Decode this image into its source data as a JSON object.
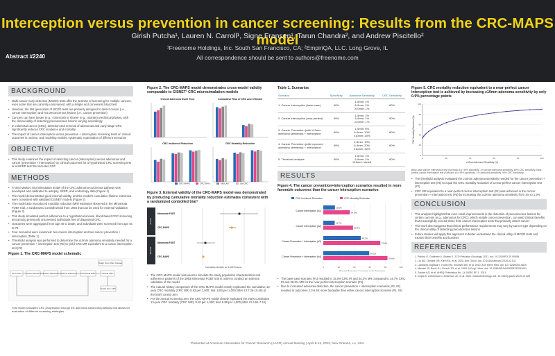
{
  "header": {
    "title": "Interception versus prevention in cancer screening: Results from the CRC-MAPS model",
    "authors": "Girish Putcha¹, Lauren N. Carroll¹, Signe Fransen¹, Tarun Chandra², and Andrew Piscitello²",
    "affiliations": "¹Freenome Holdings, Inc. South San Francisco, CA; ²EmpiriQA, LLC. Long Grove, IL",
    "correspondence": "All correspondence should be sent to authors@freenome.com",
    "abstract": "Abstract #2240"
  },
  "background": {
    "heading": "BACKGROUND",
    "bullets": [
      "Multi-cancer early detection (MCED) tests offer the promise of screening for multiple cancers, even some that are currently unscreened, with a simple and convenient blood test",
      "However, the first generation of MCED tests are primarily designed to detect cancer (i.e., cancer interception) and not precancerous lesions (i.e., cancer prevention)",
      "Cancers can have longer (e.g., colorectal) or shorter (e.g., ovarian) preclinical phases, with the clinical utility of detecting precancerous lesions varying accordingly",
      "In colorectal cancer (CRC), detection and removal of adenomas and early-stage CRC significantly reduces CRC incidence and mortality",
      "The impact of cancer interception versus prevention + interception screening tests on clinical outcomes is unclear, and modeling enables systematic examination of different scenarios"
    ]
  },
  "objective": {
    "heading": "OBJECTIVE",
    "bullets": [
      "This study examines the impact of detecting cancer (interception) versus adenomas and cancer (prevention + interception) on clinical outcomes for a hypothetical CRC screening test or a MCED test that includes CRC"
    ]
  },
  "methods": {
    "heading": "METHODS",
    "bullets": [
      "A semi Markov microsimulation model of the CRC adenoma-carcinoma pathway was developed and calibrated to autopsy, SEER, and endoscopy data (Figure 1)",
      "The model demonstrated good internal validity, and the model's cumulative lifetime outcomes were consistent with validated CISNET models (Figure 2)",
      "The model also reproduced mortality reduction (MR) estimates observed in the Minnesota FOBT trial, a randomized controlled trial from 1993 that can be used for external validation (Figure 3)",
      "This study simulated perfect adherence to a hypothetical annual, blood-based CRC screening test among previously unscreened individuals free of diagnosed CRC",
      "Outcomes were aggregated from age 40 to death, and individuals were screened from age 45 to 75",
      "Four scenarios were examined: two cancer interception and two cancer prevention + interception (Table 1)",
      "Threshold analysis was performed to determine the ≥10mm adenoma sensitivity needed for a cancer prevention + interception test (#5) to yield CRC MR equivalent to a cancer interception test (#2)"
    ]
  },
  "figure1": {
    "title": "Figure 1. The CRC-MAPS model schematic",
    "nodes": [
      "No Lesion",
      "1-5mm Adenoma",
      "6-9mm Adenoma",
      "≥10mm Adenoma",
      "Preclinical CRC",
      "Clinical CRC",
      "Death from CRC",
      "Death from Other Causes"
    ],
    "caption": "This model simulates CRC progression through the adenoma-carcinoma pathway and allows for evaluation of different screening strategies"
  },
  "figure2": {
    "title": "Figure 2. The CRC-MAPS model demonstrates cross-model validity comparable to CISNET³ CRC microsimulation models",
    "panels": [
      "Overall Adenoma Dwell Time",
      "Cumulative Risk of CRC and of Death",
      "CRC Incidence Reduction",
      "CRC Mortality Reduction"
    ],
    "models": [
      "CRC-MAPS",
      "CRC-SPIN",
      "MISCAN",
      "SimCRC"
    ]
  },
  "figure3": {
    "title": "Figure 3. External validity of the CRC-MAPS model was demonstrated by producing cumulative mortality reduction estimates consistent with a randomized controlled trial⁴",
    "rows": [
      "Minnesota FOBT",
      "CRC-MAPS",
      "Minnesota FOBT",
      "CRC-MAPS"
    ],
    "groups": [
      "Annual",
      "Biennial"
    ],
    "xlabel": "Cumulative Mortality per 1,000 Persons"
  },
  "col2_bullets": [
    "The CRC-MAPS model was used to simulate the study population characteristics and adherence patterns of the 1993 Minnesota FOBT trial in order to conduct an external validation of the model",
    "The natural history component of the CRC-MAPS model closely replicated the cumulative 13-year CRC mortality (CRC MR) 8.93 per 1,000; trial: 8.83 per 1,000 (95% CI 7.26-10.40) at the trial's control arm",
    "For the annual screening arm, the CRC-MAPS model closely replicated the trial's cumulative 13-year CRC mortality (CRC MR): 6.10 per 1,000; trial: 5.88 per 1,000 (95% CI 4.61-7.15)"
  ],
  "table1": {
    "title": "Table 1. Scenarios",
    "headers": [
      "Scenario",
      "Specificity",
      "Adenoma Sensitivity",
      "CRC Sensitivity"
    ],
    "rows": [
      {
        "scenario": "1. Cancer interception (base-case)",
        "spec": "99%",
        "aden": "1-5mm: 1%\n6-9mm: 1%\n≥10mm: 1%",
        "crc": "60%"
      },
      {
        "scenario": "2. Cancer interception (near-perfect)",
        "spec": "99%",
        "aden": "1-5mm: 1%\n6-9mm: 1%\n≥10mm: 1%",
        "crc": "90%"
      },
      {
        "scenario": "3. Cancer Prevention (with ≥10mm adenoma sensitivity) + interception",
        "spec": "99%",
        "aden": "1-5mm: 5%\n6-9mm: 10%\n≥10mm: 20%",
        "crc": "60%"
      },
      {
        "scenario": "4. Cancer Prevention (with improved adenoma sensitivity) + interception",
        "spec": "99%",
        "aden": "1-5mm: 10%\n6-9mm: 20%\n≥10mm: 30%",
        "crc": "60%"
      },
      {
        "scenario": "5. Threshold analysis",
        "spec": "99%",
        "aden": "1-5mm: 1%\n6-9mm: 1%\n≥10mm: Varied",
        "crc": "60%"
      }
    ]
  },
  "results": {
    "heading": "RESULTS",
    "figure4_title": "Figure 4. The cancer prevention+interception scenarios resulted in more favorable outcomes than the cancer interception scenarios",
    "legend": [
      "CRC Incidence Reduction",
      "CRC Mortality Reduction"
    ],
    "xlabel": "Percent Reduction Compared to No Screening",
    "bullets": [
      "The base-case scenario (#1) resulted in 15.0% CRC IR and 34.2% MR compared to 14.7% CRC IR and 38.3% MR for the near-perfect interception scenario (#2)",
      "Due to increased adenoma detection, the cancer prevention + interception scenarios (#3, #4) resulted in outcomes 2.3-5.6X more favorable than either cancer interception scenario (#1, #2)"
    ]
  },
  "chart_data": [
    {
      "type": "bar",
      "categories": [
        "Cancer Interception (#1)",
        "Cancer Interception (#2)",
        "Cancer Prevention + Interception (#3)",
        "Cancer Prevention + Interception (#4)"
      ],
      "series": [
        {
          "name": "CRC Incidence Reduction",
          "values": [
            15.0,
            14.7,
            48.2,
            59.1
          ]
        },
        {
          "name": "CRC Mortality Reduction",
          "values": [
            34.2,
            38.3,
            73.4,
            82.6
          ]
        }
      ],
      "xlabel": "Percent Reduction Compared to No Screening",
      "xlim": [
        0,
        100
      ],
      "color_incidence": "#2a6bb5",
      "color_mortality": "#e8458a"
    },
    {
      "type": "line",
      "title": "Figure 5. CRC mortality reduction equivalent to a near-perfect cancer interception test is achieved by increasing ≥10mm adenoma sensitivity by only 0.9% percentage points",
      "x": [
        0,
        1,
        2,
        3,
        5,
        10,
        20,
        30,
        40,
        50,
        60,
        70,
        80,
        90,
        100
      ],
      "values": [
        34,
        37.5,
        40,
        42.5,
        46.5,
        54,
        64,
        71,
        76,
        80,
        83,
        85.5,
        87.5,
        89,
        90
      ],
      "xlabel": "≥10mm Adenoma Sensitivity (%)",
      "ylabel": "CRC Mortality Reduction (%)",
      "color": "#4a3a8f"
    }
  ],
  "figure5_caption": "Base-case cancer interception test (Scenario #1): 99% specificity, 1% all size adenoma sensitivity, 60% CRC sensitivity. Near-perfect cancer interception test (Scenario #2): 99% specificity, 1% adenoma sensitivity, 90% CRC sensitivity.",
  "col4_bullets": [
    "The threshold analysis evaluated the ≥10mm adenoma sensitivity needed for the cancer prevention + interception test (#5) to equal the CRC mortality reduction of a near-perfect cancer interception test (#2)",
    "CRC MR equivalent to a near-perfect cancer interception test (#2) was achieved in the cancer prevention + interception test (#5) by increasing the ≥10mm adenoma sensitivity from 1% to 1.9%"
  ],
  "conclusion": {
    "heading": "CONCLUSION",
    "bullets": [
      "This analysis highlights that even small improvements in the detection of precancerous lesions for certain cancers (e.g., adenomas for CRC), which enable cancer prevention, can yield clinical benefits that meaningfully exceed those from cancer interception tests that primarily detect cancer",
      "This work also suggests that clinical performance requirements may vary by cancer type depending on the clinical utility of detecting precancerous lesions",
      "Future studies will apply this approach to better understand the clinical utility of MCED tests and explore their benefits and burdens"
    ]
  },
  "references": {
    "heading": "REFERENCES",
    "items": [
      "1. Putcha G, Gutierrez A, Skates S. JCO Precision Oncology. 2021. doi: 10.1200/PO.20.00458",
      "2. Liu MC, Oxnard GR, Klein EA, et al. 2020. Ann Oncol. doi: 10.1016/j.annonc.2020.02.011",
      "3. Lansdorp-Vogelaar I, Kuntz KM, Knudsen AB, et al. 2020. Ann Intern Med. doi: 10.7326/0003-4819",
      "4. Mandel JS, Bond JH, Church TR, et al. 1993. N Engl J Med. doi: 10.1056/NEJM199305133281901",
      "5. Zauber AG, et al. AHRQ Publication No. 14-05051-EF-1. 2015",
      "6. Gupta S, Lieberman D, Anderson JC, et al. 2020. Gastroenterology. doi: 10.1053/j.gastro.2019.10.026"
    ]
  },
  "footer": "Presented at American Association for Cancer Research (AACR) Annual Meeting | April 8-13, 2022, New Orleans, LA, USA"
}
